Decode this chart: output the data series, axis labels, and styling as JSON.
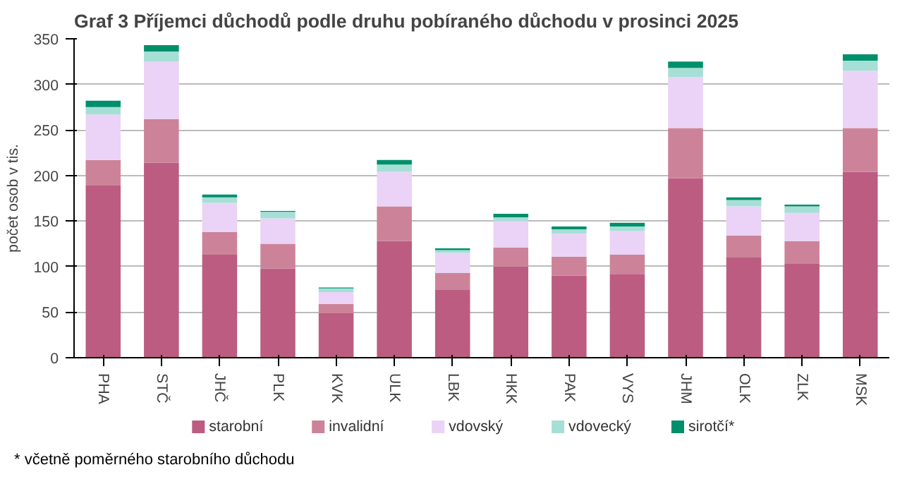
{
  "chart_data": {
    "type": "bar",
    "stacked": true,
    "title": "Graf 3 Příjemci důchodů podle druhu pobíraného důchodu v prosinci 2025",
    "ylabel": "počet osob v tis.",
    "categories": [
      "PHA",
      "STČ",
      "JHČ",
      "PLK",
      "KVK",
      "ULK",
      "LBK",
      "HKK",
      "PAK",
      "VYS",
      "JHM",
      "OLK",
      "ZLK",
      "MSK"
    ],
    "series": [
      {
        "name": "starobní",
        "color": "#bb5c80",
        "values": [
          189,
          214,
          113,
          98,
          49,
          128,
          75,
          100,
          90,
          92,
          197,
          110,
          103,
          204
        ]
      },
      {
        "name": "invalidní",
        "color": "#cc8399",
        "values": [
          28,
          48,
          25,
          27,
          10,
          38,
          18,
          21,
          21,
          21,
          55,
          24,
          25,
          48
        ]
      },
      {
        "name": "vdovský",
        "color": "#ead3f6",
        "values": [
          50,
          63,
          32,
          28,
          13,
          38,
          22,
          29,
          25,
          26,
          56,
          32,
          31,
          63
        ]
      },
      {
        "name": "vdovecký",
        "color": "#a6dfd6",
        "values": [
          8,
          11,
          6,
          7,
          4,
          8,
          3,
          4,
          5,
          5,
          10,
          7,
          7,
          11
        ]
      },
      {
        "name": "sirotčí*",
        "color": "#008f6b",
        "values": [
          7,
          7,
          3,
          1,
          1,
          5,
          2,
          4,
          3,
          4,
          7,
          3,
          2,
          7
        ]
      }
    ],
    "ylim": [
      0,
      350
    ],
    "yticks": [
      0,
      50,
      100,
      150,
      200,
      250,
      300,
      350
    ],
    "grid": "y",
    "legend": "bottom",
    "annotations": [
      "* včetně poměrného starobního důchodu"
    ]
  }
}
